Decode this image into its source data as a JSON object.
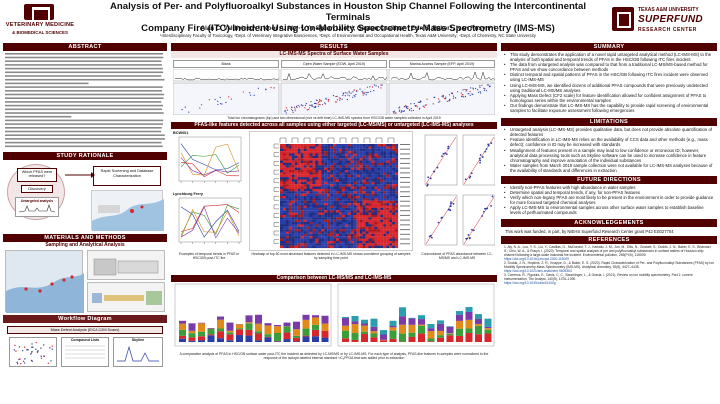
{
  "header": {
    "title_line1": "Analysis of Per- and Polyfluoroalkyl Substances in Houston Ship Channel Following the Intercontinental Terminals",
    "title_line2": "Company Fire (ITC) Incident Using Ion-Mobility Spectrometry-Mass Spectrometry (IMS-MS)",
    "authors": "Alan C. Valdiviezo¹·², Noor A. Aly¹·², Yu-Syuan Luo¹·², Gaston Casillas¹·³ Erin S. Baker⁴, Ivan Rusyn¹·²",
    "affiliations": "¹Interdisciplinary Faculty of Toxicology, ²Dept. of Veterinary Integrative Biosciences, ³Dept. of Environmental and Occupational Health, Texas A&M University; ⁴Dept. of Chemistry, NC State University",
    "logo_left_line1": "VETERINARY MEDICINE",
    "logo_left_line2": "& BIOMEDICAL SCIENCES",
    "logo_right_line1": "TEXAS A&M UNIVERSITY",
    "logo_right_line2": "SUPERFUND",
    "logo_right_line3": "RESEARCH CENTER"
  },
  "left": {
    "abstract_head": "ABSTRACT",
    "study_head": "STUDY RATIONALE",
    "study_box1": "Which PFAS were released?",
    "study_box2": "Discovery",
    "study_box3": "Rapid Screening and Database Characterization",
    "study_box4": "Untargeted analysis",
    "methods_head": "MATERIALS AND METHODS",
    "sampling_head": "Sampling and Analytical Analysis",
    "workflow_head": "Workflow Diagram",
    "workflow_box1": "Mass Defect Analysis (EIC/LC/IM Scans)",
    "workflow_box2": "Compound Lists",
    "workflow_box3": "Skyline"
  },
  "middle": {
    "results_head": "RESULTS",
    "spectra_head": "LC-IMS-MS Spectra of Surface Water Samples",
    "spectra_label1": "Blank",
    "spectra_label2": "Open Water Sample (EOW, April 2019)",
    "spectra_label3": "Marina Access Sample (EFP, April 2019)",
    "spectra_caption": "Total Ion chromatograms (top) and two-dimensional (m/z vs drift time) LC-IMS-MS spectra from HSC/GB water samples collected in April 2019",
    "pfas_head": "PFAS-like features detected across all samples using either targeted (LC-MS/MS) or untargeted (LC-IMS-MS) analyses",
    "pfas_caption1": "Examples of temporal trends in PFAS in HSC/GB post-ITC fire",
    "pfas_caption2": "Heatmap of top 50 most abundant features detected in LC-IMS-MS shows consistent grouping of samples by sampling time point",
    "pfas_caption3": "Concordance of PFAS abundance between LC-MS/MS and LC-IMS-MS",
    "site1": "BCW001",
    "site2": "Lynchburg Ferry",
    "comparison_head": "Comparison between LC-MS/MS and LC-IMS-MS",
    "comparison_caption": "A comparative analysis of PFAS in HSC/GB surface water post-ITC fire incident as detected by LC-MS/MS or by LC-IMS-MS. For each type of analysis, PFAS-like features in samples were normalized to the response of the isotope-labeled internal standard ¹³C₈PFOA that was added prior to extraction"
  },
  "right": {
    "summary_head": "SUMMARY",
    "summary": [
      "This study demonstrates the application of a novel rapid untargeted analytical method (LC-IMS-MS) to the analysis of both spatial and temporal trends of PFAS in the HSC/GB following ITC fires incident",
      "The data from untargeted analysis was compared to that from a traditional LC-MS/MS-based method for PFAS and we show concordance between methods",
      "Distinct temporal and spatial patterns of PFAS in the HSC/GB following ITC fires incident were observed using LC-IMS-MS",
      "Using LC-IMS-MS, we identified dozens of additional PFAS compounds that were previously undetected using traditional LC-MS/MS analyses",
      "Applying Mass Defect (CF2 scale) for feature identification allowed for confident assignment of PFAS to homologous series within the environmental samples",
      "Our findings demonstrate that LC-IMS-MS has the capability to provide rapid screening of environmental samples to facilitate exposure assessment following emergencies"
    ],
    "limitations_head": "LIMITATIONS",
    "limitations": [
      "Untargeted analysis (LC-IMS-MS) provides qualitative data, but does not provide absolute quantification of detected features",
      "Feature identification in LC-IMS-MS relies on the availability of CCS data and other methods (e.g., mass defect); confidence in ID may be increased with standards",
      "Misalignment of features present in a sample may lead to low confidence or erroneous ID; however, analytical data processing tools such as Skyline software can be used to increase confidence in feature chromatography and improve annotation of the individual substances",
      "Water samples from March 2019 sample collection were not available for LC-IMS-MS analyses because of the availability of standards and differences in extraction"
    ],
    "future_head": "FUTURE DIRECTIONS",
    "future": [
      "Identify non-PFAS features with high abundance in water samples",
      "Determine spatial and temporal trends, if any, for non-PFAS features",
      "Verify which non-legacy PFAS are most likely to be present in the environment in order to provide guidance for more focused targeted chemical analyses",
      "Apply LC-IMS-MS to environmental samples across other surface water samples to establish baseline levels of perfluorinated compounds"
    ],
    "ack_head": "ACKNOWLEDGEMENTS",
    "ack_text": "This work was funded, in part, by NIEHS Superfund Research Center grant P42 ES027704",
    "refs_head": "REFERENCES",
    "refs": [
      "1. Aly, N. A., Luo, Y. S., Liu, Y., Casillas, G., McDonald, T. J., Kaihatu, J. M., Jun, M., Ellis, N., Gossett, S., Dodds, J. N., Baker, E. S., Bhandari, S., Chiu, W. A., & Rusyn, I. (2020). Temporal and spatial analysis of per and polyfluoroalkyl substances in surface waters of Houston ship channel following a large-scale industrial fire incident. Environmental pollution, 265(Pt B), 115009.",
      "https://doi.org/10.1016/j.envpol.2020.115009",
      "2. Dodds, J. N., Hopkins, Z. R., Knappe, D., & Baker, E. S. (2020). Rapid Characterization of Per- and Polyfluoroalkyl Substances (PFAS) by Ion Mobility Spectrometry-Mass Spectrometry (IMS-MS). Analytical chemistry, 92(6), 4427–4435.",
      "https://doi.org/10.1021/acs.analchem.9b05364",
      "3. Carrerus, R., Figueira, E., Davis, C. C., Bauchinger, L., & Grácia, I. (2021). Review on ion mobility spectrometry. Part 1: current instrumentation. The Analyst, 140(5), 1376–1390.",
      "https://doi.org/10.1039/c4an01100g"
    ]
  },
  "colors": {
    "maroon": "#500000",
    "heat_high": "#d8262d",
    "heat_low": "#2b3ea8"
  }
}
